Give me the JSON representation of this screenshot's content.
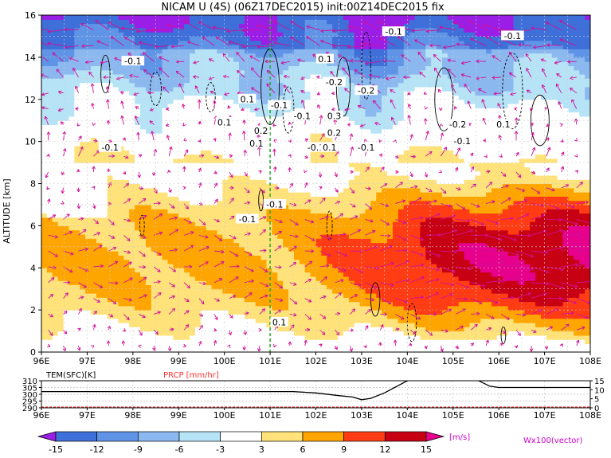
{
  "title": "NICAM U (4S) (06Z17DEC2015) init:00Z14DEC2015 fix",
  "chart_data": [
    {
      "type": "heatmap",
      "panel": "main",
      "variable": "U",
      "ylabel": "ALTITUDE [km]",
      "xlim": [
        96,
        108
      ],
      "ylim": [
        0,
        16
      ],
      "x_ticks": [
        "96E",
        "97E",
        "98E",
        "99E",
        "100E",
        "101E",
        "102E",
        "103E",
        "104E",
        "105E",
        "106E",
        "107E",
        "108E"
      ],
      "y_ticks": [
        "0",
        "2",
        "4",
        "6",
        "8",
        "10",
        "12",
        "14",
        "16"
      ],
      "grid": true,
      "reference_line_lon": 101,
      "contour_labels": [
        {
          "text": "-0.1",
          "lon": 103.7,
          "alt": 15.2
        },
        {
          "text": "-0.1",
          "lon": 106.3,
          "alt": 15.0
        },
        {
          "text": "-0.1",
          "lon": 98.0,
          "alt": 13.8
        },
        {
          "text": "0.1",
          "lon": 102.2,
          "alt": 13.9
        },
        {
          "text": "-0.2",
          "lon": 102.4,
          "alt": 12.8
        },
        {
          "text": "-0.2",
          "lon": 103.1,
          "alt": 12.4
        },
        {
          "text": "0.1",
          "lon": 100.5,
          "alt": 12.0
        },
        {
          "text": "-0.1",
          "lon": 101.2,
          "alt": 11.7
        },
        {
          "text": "-0.1",
          "lon": 101.7,
          "alt": 11.2
        },
        {
          "text": "0.3",
          "lon": 102.4,
          "alt": 11.2
        },
        {
          "text": "0.1",
          "lon": 100.0,
          "alt": 10.9
        },
        {
          "text": "0.2",
          "lon": 100.8,
          "alt": 10.5
        },
        {
          "text": "0.2",
          "lon": 102.4,
          "alt": 10.4
        },
        {
          "text": "-0.2",
          "lon": 105.1,
          "alt": 10.8
        },
        {
          "text": "0.1",
          "lon": 106.1,
          "alt": 10.8
        },
        {
          "text": "0.1",
          "lon": 100.7,
          "alt": 9.9
        },
        {
          "text": "-0.1",
          "lon": 105.2,
          "alt": 10.0
        },
        {
          "text": "-0.1",
          "lon": 97.5,
          "alt": 9.7
        },
        {
          "text": "-0.1",
          "lon": 102.0,
          "alt": 9.7
        },
        {
          "text": "0.1",
          "lon": 102.3,
          "alt": 9.7
        },
        {
          "text": "-0.1",
          "lon": 103.1,
          "alt": 9.7
        },
        {
          "text": "-0.1",
          "lon": 101.1,
          "alt": 7.0
        },
        {
          "text": "-0.1",
          "lon": 100.5,
          "alt": 6.3
        },
        {
          "text": "0.1",
          "lon": 101.2,
          "alt": 1.4
        }
      ]
    },
    {
      "type": "line",
      "panel": "surface",
      "series": [
        {
          "name": "TEM(SFC)[K]",
          "color": "#000000",
          "x": [
            96,
            96.5,
            97,
            97.5,
            98,
            98.5,
            99,
            99.5,
            100,
            100.5,
            101,
            101.5,
            102,
            102.5,
            102.8,
            103,
            103.2,
            103.5,
            104,
            104.5,
            105,
            105.5,
            105.8,
            106,
            106.5,
            107,
            107.5,
            108
          ],
          "values": [
            302,
            302,
            302,
            302,
            302,
            302,
            302,
            302,
            302,
            302,
            302,
            302,
            301,
            299,
            298,
            296,
            297,
            301,
            310,
            312,
            312,
            311,
            306,
            305,
            305,
            305,
            305,
            305
          ]
        },
        {
          "name": "PRCP [mm/hr]",
          "color": "#ff3030",
          "x": [
            96,
            108
          ],
          "values": [
            0,
            0
          ]
        }
      ],
      "left_ticks": [
        "310",
        "305",
        "300",
        "295",
        "290"
      ],
      "right_ticks": [
        "15",
        "10",
        "5",
        "0"
      ]
    }
  ],
  "colorbar": {
    "ticks": [
      "-15",
      "-12",
      "-9",
      "-6",
      "-3",
      "3",
      "6",
      "9",
      "12",
      "15"
    ],
    "unit": "[m/s]",
    "colors": [
      "#9b1ee6",
      "#3f6fd8",
      "#5f94e6",
      "#8cb8f0",
      "#b6e3f6",
      "#ffffff",
      "#ffe27a",
      "#ffa500",
      "#ff3c14",
      "#c80014",
      "#e6008c"
    ]
  },
  "vector_legend": "Wx100(vector)"
}
